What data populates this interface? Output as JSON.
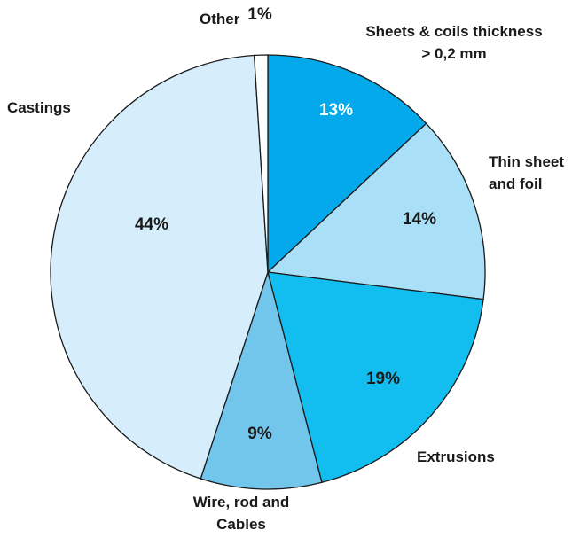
{
  "chart_data": {
    "type": "pie",
    "start_angle_deg": 0,
    "direction": "clockwise",
    "slices": [
      {
        "label_lines": [
          "Sheets & coils thickness",
          "> 0,2 mm"
        ],
        "value": 13,
        "value_label": "13%",
        "color": "#03A9EA",
        "value_label_color": "#ffffff"
      },
      {
        "label_lines": [
          "Thin sheet",
          "and foil"
        ],
        "value": 14,
        "value_label": "14%",
        "color": "#A9DFF7",
        "value_label_color": "#1a1a1a"
      },
      {
        "label_lines": [
          "Extrusions"
        ],
        "value": 19,
        "value_label": "19%",
        "color": "#12BDEF",
        "value_label_color": "#1a1a1a"
      },
      {
        "label_lines": [
          "Wire, rod and",
          "Cables"
        ],
        "value": 9,
        "value_label": "9%",
        "color": "#72C6EC",
        "value_label_color": "#1a1a1a"
      },
      {
        "label_lines": [
          "Castings"
        ],
        "value": 44,
        "value_label": "44%",
        "color": "#D6EEFB",
        "value_label_color": "#1a1a1a"
      },
      {
        "label_lines": [
          "Other"
        ],
        "value": 1,
        "value_label": "1%",
        "color": "#ffffff",
        "value_label_color": "#1a1a1a"
      }
    ]
  }
}
